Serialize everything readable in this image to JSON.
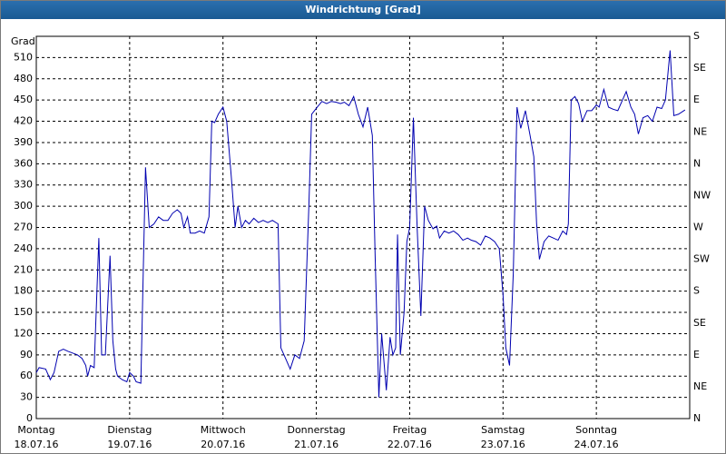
{
  "chart_data": {
    "type": "line",
    "title": "Windrichtung [Grad]",
    "ylabel": "Grad",
    "grid": true,
    "xlim": [
      0,
      7
    ],
    "xticks": [
      {
        "value": 0,
        "label": "Montag",
        "date": "18.07.16"
      },
      {
        "value": 1,
        "label": "Dienstag",
        "date": "19.07.16"
      },
      {
        "value": 2,
        "label": "Mittwoch",
        "date": "20.07.16"
      },
      {
        "value": 3,
        "label": "Donnerstag",
        "date": "21.07.16"
      },
      {
        "value": 4,
        "label": "Freitag",
        "date": "22.07.16"
      },
      {
        "value": 5,
        "label": "Samstag",
        "date": "23.07.16"
      },
      {
        "value": 6,
        "label": "Sonntag",
        "date": "24.07.16"
      }
    ],
    "ylim": [
      0,
      540
    ],
    "yticks": [
      0,
      30,
      60,
      90,
      120,
      150,
      180,
      210,
      240,
      270,
      300,
      330,
      360,
      390,
      420,
      450,
      480,
      510
    ],
    "y2lim": [
      0,
      540
    ],
    "y2ticks": [
      {
        "value": 0,
        "label": "N"
      },
      {
        "value": 45,
        "label": "NE"
      },
      {
        "value": 90,
        "label": "E"
      },
      {
        "value": 135,
        "label": "SE"
      },
      {
        "value": 180,
        "label": "S"
      },
      {
        "value": 225,
        "label": "SW"
      },
      {
        "value": 270,
        "label": "W"
      },
      {
        "value": 315,
        "label": "NW"
      },
      {
        "value": 360,
        "label": "N"
      },
      {
        "value": 405,
        "label": "NE"
      },
      {
        "value": 450,
        "label": "E"
      },
      {
        "value": 495,
        "label": "SE"
      },
      {
        "value": 540,
        "label": "S"
      }
    ],
    "color": "#0000b0",
    "x": [
      0.0,
      0.03,
      0.1,
      0.15,
      0.19,
      0.24,
      0.29,
      0.34,
      0.44,
      0.49,
      0.53,
      0.55,
      0.58,
      0.62,
      0.67,
      0.7,
      0.74,
      0.79,
      0.82,
      0.85,
      0.87,
      0.92,
      0.97,
      1.0,
      1.04,
      1.07,
      1.12,
      1.17,
      1.21,
      1.26,
      1.31,
      1.36,
      1.41,
      1.46,
      1.51,
      1.55,
      1.58,
      1.62,
      1.65,
      1.7,
      1.75,
      1.8,
      1.85,
      1.88,
      1.91,
      1.95,
      2.0,
      2.04,
      2.09,
      2.13,
      2.16,
      2.2,
      2.24,
      2.28,
      2.33,
      2.38,
      2.43,
      2.48,
      2.53,
      2.59,
      2.62,
      2.67,
      2.72,
      2.77,
      2.82,
      2.87,
      2.92,
      2.95,
      3.01,
      3.06,
      3.11,
      3.16,
      3.21,
      3.26,
      3.3,
      3.35,
      3.4,
      3.45,
      3.5,
      3.55,
      3.6,
      3.63,
      3.67,
      3.7,
      3.75,
      3.79,
      3.82,
      3.85,
      3.87,
      3.9,
      3.94,
      3.97,
      4.0,
      4.04,
      4.08,
      4.12,
      4.16,
      4.2,
      4.25,
      4.29,
      4.32,
      4.37,
      4.42,
      4.47,
      4.52,
      4.57,
      4.62,
      4.66,
      4.71,
      4.76,
      4.81,
      4.86,
      4.91,
      4.96,
      5.0,
      5.03,
      5.07,
      5.11,
      5.15,
      5.19,
      5.24,
      5.29,
      5.33,
      5.36,
      5.39,
      5.44,
      5.49,
      5.54,
      5.59,
      5.64,
      5.68,
      5.7,
      5.73,
      5.77,
      5.81,
      5.85,
      5.9,
      5.95,
      6.0,
      6.03,
      6.08,
      6.13,
      6.18,
      6.23,
      6.28,
      6.32,
      6.37,
      6.41,
      6.45,
      6.5,
      6.55,
      6.6,
      6.65,
      6.7,
      6.74,
      6.79,
      6.83,
      6.88,
      6.95
    ],
    "values": [
      65,
      72,
      70,
      55,
      65,
      95,
      98,
      95,
      90,
      85,
      75,
      60,
      75,
      72,
      255,
      90,
      90,
      230,
      110,
      70,
      60,
      55,
      52,
      65,
      60,
      52,
      50,
      355,
      270,
      275,
      285,
      280,
      280,
      290,
      295,
      290,
      270,
      285,
      262,
      262,
      265,
      262,
      285,
      420,
      418,
      430,
      440,
      420,
      340,
      270,
      300,
      270,
      280,
      275,
      283,
      277,
      280,
      277,
      280,
      275,
      100,
      85,
      70,
      90,
      85,
      110,
      300,
      430,
      440,
      448,
      445,
      448,
      447,
      445,
      447,
      442,
      455,
      430,
      412,
      440,
      400,
      230,
      30,
      120,
      40,
      115,
      90,
      100,
      260,
      90,
      150,
      250,
      270,
      425,
      270,
      145,
      300,
      280,
      268,
      272,
      255,
      265,
      262,
      265,
      260,
      252,
      255,
      252,
      250,
      245,
      258,
      255,
      250,
      240,
      175,
      100,
      75,
      205,
      440,
      410,
      435,
      400,
      370,
      275,
      225,
      250,
      258,
      255,
      252,
      265,
      260,
      275,
      450,
      455,
      445,
      420,
      435,
      435,
      443,
      440,
      465,
      440,
      437,
      435,
      450,
      462,
      440,
      430,
      402,
      425,
      428,
      420,
      440,
      438,
      450,
      520,
      428,
      430,
      436
    ]
  }
}
